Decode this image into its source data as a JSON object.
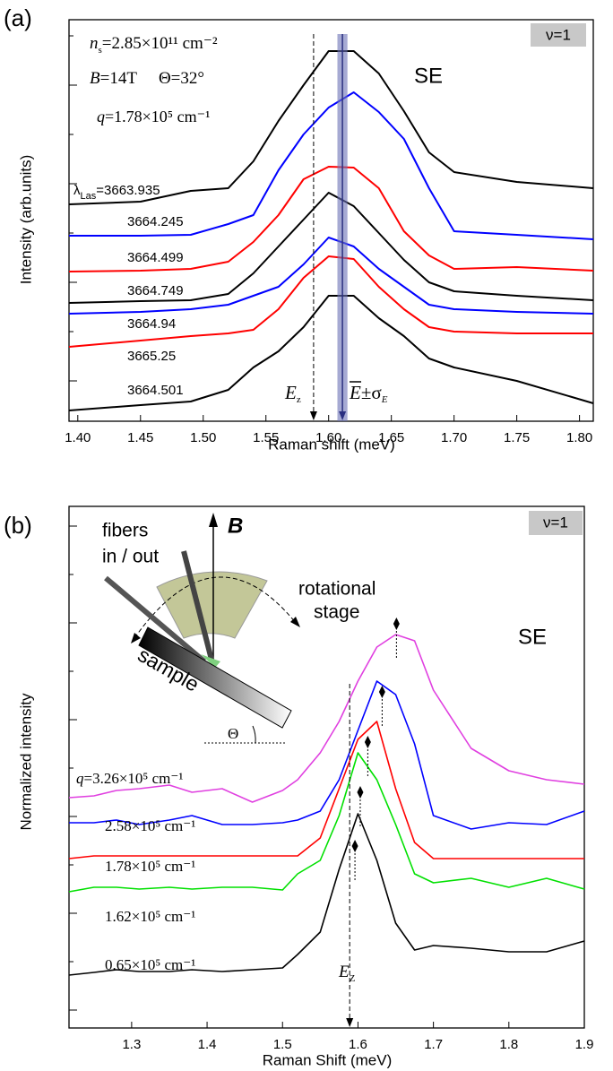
{
  "chart_data": [
    {
      "type": "line",
      "panel_label": "(a)",
      "filling": "ν=1",
      "x_label": "Raman shift (meV)",
      "y_label": "Intensity (arb.units)",
      "peak_label": "SE",
      "density": {
        "symbol": "n",
        "sub": "s",
        "value": "=2.85×10¹¹ cm⁻²"
      },
      "field": {
        "symbol": "B",
        "value": "=14T",
        "angle": "Θ=32°"
      },
      "wavevector": {
        "symbol": "q",
        "value": "=1.78×10⁵ cm⁻¹"
      },
      "laser_label": {
        "symbol": "λ",
        "sub": "Las",
        "sign": "="
      },
      "ez_label": {
        "symbol": "E",
        "sub": "z"
      },
      "mean_label": {
        "symbol": "E",
        "sign": "±σ",
        "sub": "E"
      },
      "x": [
        1.393,
        1.45,
        1.49,
        1.52,
        1.54,
        1.56,
        1.58,
        1.6,
        1.62,
        1.64,
        1.66,
        1.68,
        1.7,
        1.75,
        1.811
      ],
      "series": [
        {
          "name": "3663.935",
          "color": "#000000",
          "values": [
            242,
            245,
            257,
            260,
            290,
            335,
            375,
            413,
            413,
            388,
            346,
            300,
            278,
            267,
            260
          ]
        },
        {
          "name": "3664.245",
          "color": "#0000ff",
          "values": [
            207,
            207,
            208,
            220,
            230,
            280,
            320,
            350,
            367,
            345,
            315,
            260,
            212,
            208,
            203
          ]
        },
        {
          "name": "3664.499",
          "color": "#ff0000",
          "values": [
            167,
            168,
            170,
            178,
            200,
            230,
            270,
            284,
            283,
            260,
            212,
            185,
            170,
            172,
            168
          ]
        },
        {
          "name": "3664.749",
          "color": "#000000",
          "values": [
            132,
            134,
            135,
            142,
            165,
            195,
            225,
            255,
            240,
            210,
            180,
            155,
            145,
            140,
            135
          ]
        },
        {
          "name": "3664.94",
          "color": "#0000ff",
          "values": [
            120,
            122,
            125,
            130,
            140,
            150,
            175,
            205,
            195,
            170,
            150,
            130,
            125,
            122,
            120
          ]
        },
        {
          "name": "3665.25",
          "color": "#ff0000",
          "values": [
            83,
            90,
            95,
            98,
            102,
            125,
            160,
            184,
            181,
            150,
            125,
            105,
            100,
            98,
            98
          ]
        },
        {
          "name": "3664.501",
          "color": "#000000",
          "values": [
            12,
            18,
            22,
            35,
            60,
            78,
            105,
            140,
            140,
            115,
            95,
            70,
            60,
            45,
            20
          ]
        }
      ],
      "xlim": [
        1.393,
        1.811
      ],
      "xticks": [
        {
          "value": 1.4,
          "label": "1.40"
        },
        1.45,
        {
          "value": 1.5,
          "label": "1.50"
        },
        1.55,
        {
          "value": 1.6,
          "label": "1.60"
        },
        1.65,
        {
          "value": 1.7,
          "label": "1.70"
        },
        1.75,
        {
          "value": 1.8,
          "label": "1.80"
        }
      ],
      "ylim": [
        0,
        448
      ],
      "yticks": [
        45,
        100,
        155,
        210,
        265,
        320,
        375,
        430
      ],
      "ez": 1.588,
      "mean_e": 1.611,
      "sigma_e": 0.004
    },
    {
      "type": "line",
      "panel_label": "(b)",
      "filling": "ν=1",
      "x_label": "Raman Shift (meV)",
      "y_label": "Normalized intensity",
      "peak_label": "SE",
      "inset": {
        "fibers": "fibers",
        "fibers_dir": "in / out",
        "stage": "rotational",
        "stage2": "stage",
        "sample": "sample",
        "angle": "Θ",
        "field": "B"
      },
      "series_prefix": {
        "symbol": "q",
        "sign": "="
      },
      "ez_label": {
        "symbol": "E",
        "sub": "Z"
      },
      "x": [
        1.217,
        1.25,
        1.28,
        1.31,
        1.35,
        1.38,
        1.42,
        1.46,
        1.5,
        1.52,
        1.55,
        1.575,
        1.6,
        1.625,
        1.65,
        1.675,
        1.7,
        1.75,
        1.8,
        1.85,
        1.9
      ],
      "series": [
        {
          "name": "3.26×10⁵ cm⁻¹",
          "color": "#e040e0",
          "values": [
            257,
            259,
            265,
            267,
            271,
            263,
            267,
            252,
            265,
            277,
            307,
            342,
            387,
            425,
            439,
            432,
            377,
            312,
            287,
            277,
            272
          ]
        },
        {
          "name": "2.58×10⁵ cm⁻¹",
          "color": "#0000ff",
          "values": [
            229,
            229,
            232,
            227,
            232,
            237,
            227,
            227,
            229,
            232,
            242,
            277,
            332,
            387,
            372,
            317,
            237,
            222,
            229,
            227,
            242
          ]
        },
        {
          "name": "1.78×10⁵ cm⁻¹",
          "color": "#ff0000",
          "values": [
            189,
            192,
            192,
            192,
            192,
            192,
            192,
            192,
            192,
            192,
            212,
            267,
            322,
            342,
            267,
            207,
            189,
            189,
            189,
            189,
            189
          ]
        },
        {
          "name": "1.62×10⁵ cm⁻¹",
          "color": "#00e000",
          "values": [
            152,
            157,
            157,
            155,
            157,
            155,
            157,
            157,
            154,
            172,
            187,
            237,
            307,
            277,
            227,
            172,
            162,
            167,
            157,
            167,
            155
          ]
        },
        {
          "name": "0.65×10⁵ cm⁻¹",
          "color": "#000000",
          "values": [
            59,
            62,
            65,
            63,
            63,
            65,
            63,
            65,
            67,
            82,
            107,
            177,
            239,
            187,
            117,
            87,
            92,
            89,
            85,
            85,
            97
          ]
        }
      ],
      "peaks": {
        "x": [
          1.651,
          1.632,
          1.613,
          1.603,
          1.596
        ],
        "y": [
          451,
          375,
          319,
          263,
          203
        ]
      },
      "xlim": [
        1.217,
        1.9
      ],
      "xticks": [
        1.3,
        1.4,
        1.5,
        1.6,
        1.7,
        1.8,
        1.9
      ],
      "ylim": [
        0,
        582
      ],
      "yticks": [
        20,
        74,
        128,
        182,
        236,
        290,
        344,
        398,
        452,
        506,
        560
      ],
      "ez": 1.589
    }
  ]
}
